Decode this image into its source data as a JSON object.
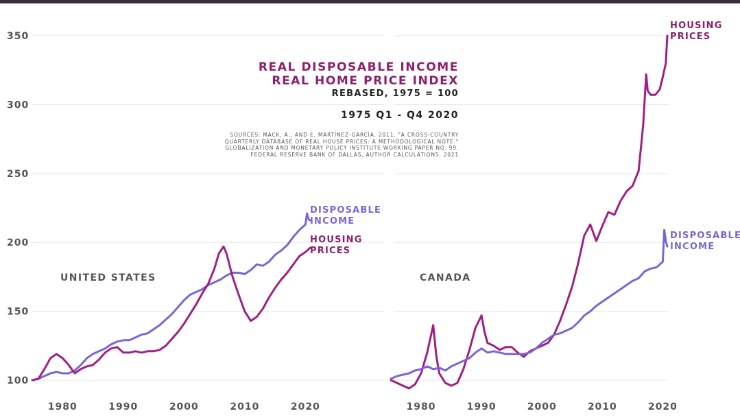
{
  "title": {
    "line1": "REAL DISPOSABLE INCOME",
    "line2": "REAL HOME PRICE INDEX",
    "subtitle": "REBASED, 1975 = 100",
    "period": "1975 Q1 - Q4 2020",
    "sources": [
      "SOURCES: MACK, A., AND E. MARTÍNEZ-GARCÍA. 2011. \"A CROSS-COUNTRY",
      "QUARTERLY DATABASE OF REAL HOUSE PRICES: A METHODOLOGICAL NOTE.\"",
      "GLOBALIZATION AND MONETARY POLICY INSTITUTE WORKING PAPER NO. 99,",
      "FEDERAL RESERVE BANK OF DALLAS, AUTHOR CALCULATIONS, 2021"
    ]
  },
  "colors": {
    "income": "#7a65d6",
    "housing": "#a11f84",
    "housing_label": "#8e1f6c",
    "grid": "#e6e6e6",
    "topbar": "#3a2d3a"
  },
  "chart_data": [
    {
      "type": "line",
      "title": "UNITED STATES",
      "x_ticks": [
        "1980",
        "1990",
        "2000",
        "2010",
        "2020"
      ],
      "y_ticks": [
        "100",
        "150",
        "200",
        "250",
        "300",
        "350"
      ],
      "xlim": [
        1975,
        2020.75
      ],
      "ylim": [
        95,
        355
      ],
      "series": [
        {
          "name": "DISPOSABLE INCOME",
          "label_lines": [
            "DISPOSABLE",
            "INCOME"
          ],
          "color": "#7a65d6",
          "x": [
            1975,
            1976,
            1977,
            1978,
            1979,
            1980,
            1981,
            1982,
            1983,
            1984,
            1985,
            1986,
            1987,
            1988,
            1989,
            1990,
            1991,
            1992,
            1993,
            1994,
            1995,
            1996,
            1997,
            1998,
            1999,
            2000,
            2001,
            2002,
            2003,
            2004,
            2005,
            2006,
            2007,
            2008,
            2009,
            2010,
            2011,
            2012,
            2013,
            2014,
            2015,
            2016,
            2017,
            2018,
            2019,
            2020,
            2020.25,
            2020.5,
            2020.75
          ],
          "y": [
            100,
            101,
            103,
            105,
            106,
            105,
            105,
            107,
            111,
            116,
            119,
            121,
            123,
            126,
            128,
            129,
            129,
            131,
            133,
            134,
            137,
            140,
            144,
            148,
            153,
            158,
            162,
            164,
            166,
            169,
            171,
            173,
            176,
            178,
            178,
            177,
            180,
            184,
            183,
            186,
            191,
            194,
            198,
            204,
            209,
            213,
            221,
            217,
            216
          ]
        },
        {
          "name": "HOUSING PRICES",
          "label_lines": [
            "HOUSING",
            "PRICES"
          ],
          "color": "#a11f84",
          "x": [
            1975,
            1976,
            1977,
            1978,
            1979,
            1980,
            1981,
            1982,
            1983,
            1984,
            1985,
            1986,
            1987,
            1988,
            1989,
            1990,
            1991,
            1992,
            1993,
            1994,
            1995,
            1996,
            1997,
            1998,
            1999,
            2000,
            2001,
            2002,
            2003,
            2004,
            2005,
            2005.75,
            2006.5,
            2007,
            2008,
            2009,
            2010,
            2011,
            2012,
            2013,
            2014,
            2015,
            2016,
            2017,
            2018,
            2019,
            2020,
            2020.75
          ],
          "y": [
            100,
            101,
            108,
            116,
            119,
            116,
            111,
            105,
            108,
            110,
            111,
            115,
            120,
            123,
            124,
            120,
            120,
            121,
            120,
            121,
            121,
            122,
            125,
            130,
            135,
            141,
            148,
            155,
            163,
            170,
            181,
            192,
            197,
            192,
            175,
            162,
            150,
            143,
            146,
            152,
            160,
            167,
            173,
            178,
            184,
            190,
            193,
            196
          ]
        }
      ]
    },
    {
      "type": "line",
      "title": "CANADA",
      "x_ticks": [
        "1980",
        "1990",
        "2000",
        "2010",
        "2020"
      ],
      "y_ticks": [
        "100",
        "150",
        "200",
        "250",
        "300",
        "350"
      ],
      "xlim": [
        1975,
        2020.75
      ],
      "ylim": [
        95,
        355
      ],
      "series": [
        {
          "name": "HOUSING PRICES",
          "label_lines": [
            "HOUSING",
            "PRICES"
          ],
          "color": "#a11f84",
          "x": [
            1975,
            1976,
            1977,
            1978,
            1979,
            1980,
            1981,
            1982,
            1982.5,
            1983,
            1984,
            1985,
            1986,
            1987,
            1988,
            1989,
            1990,
            1990.5,
            1991,
            1992,
            1993,
            1994,
            1995,
            1996,
            1997,
            1998,
            1999,
            2000,
            2001,
            2002,
            2003,
            2004,
            2005,
            2006,
            2007,
            2008,
            2009,
            2010,
            2011,
            2012,
            2013,
            2014,
            2015,
            2016,
            2016.75,
            2017.25,
            2017.5,
            2018,
            2018.75,
            2019.5,
            2020,
            2020.5,
            2020.75
          ],
          "y": [
            100,
            98,
            96,
            94,
            97,
            105,
            120,
            140,
            118,
            105,
            98,
            96,
            98,
            108,
            122,
            138,
            147,
            135,
            127,
            125,
            122,
            124,
            124,
            120,
            117,
            121,
            123,
            125,
            127,
            133,
            143,
            155,
            168,
            185,
            205,
            213,
            201,
            212,
            222,
            220,
            230,
            237,
            241,
            252,
            285,
            322,
            310,
            307,
            307,
            311,
            320,
            330,
            350
          ]
        },
        {
          "name": "DISPOSABLE INCOME",
          "label_lines": [
            "DISPOSABLE",
            "INCOME"
          ],
          "color": "#7a65d6",
          "x": [
            1975,
            1976,
            1977,
            1978,
            1979,
            1980,
            1981,
            1982,
            1983,
            1984,
            1985,
            1986,
            1987,
            1988,
            1989,
            1990,
            1991,
            1992,
            1993,
            1994,
            1995,
            1996,
            1997,
            1998,
            1999,
            2000,
            2001,
            2002,
            2003,
            2004,
            2005,
            2006,
            2007,
            2008,
            2009,
            2010,
            2011,
            2012,
            2013,
            2014,
            2015,
            2016,
            2017,
            2018,
            2019,
            2020,
            2020.25,
            2020.5,
            2020.75
          ],
          "y": [
            101,
            103,
            104,
            105,
            107,
            108,
            110,
            108,
            109,
            107,
            110,
            112,
            114,
            116,
            120,
            123,
            120,
            121,
            120,
            119,
            119,
            119,
            119,
            120,
            123,
            127,
            130,
            133,
            134,
            136,
            138,
            142,
            147,
            150,
            154,
            157,
            160,
            163,
            166,
            169,
            172,
            174,
            179,
            181,
            182,
            186,
            209,
            201,
            197
          ]
        }
      ]
    }
  ]
}
